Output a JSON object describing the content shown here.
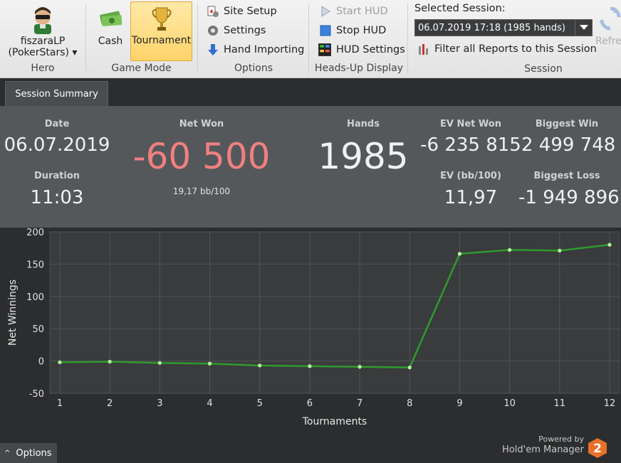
{
  "ribbon": {
    "hero": {
      "name": "fiszaraLP",
      "site": "(PokerStars) ▾",
      "group_label": "Hero"
    },
    "game_mode": {
      "cash_label": "Cash",
      "tournament_label": "Tournament",
      "group_label": "Game Mode"
    },
    "options": {
      "site_setup": "Site Setup",
      "settings": "Settings",
      "hand_importing": "Hand Importing",
      "group_label": "Options"
    },
    "hud": {
      "start_hud": "Start HUD",
      "stop_hud": "Stop HUD",
      "hud_settings": "HUD Settings",
      "group_label": "Heads-Up Display"
    },
    "session": {
      "selected_label": "Selected Session:",
      "selected_value": "06.07.2019 17:18 (1985 hands)",
      "filter_label": "Filter all Reports to this Session",
      "group_label": "Session",
      "refresh_label": "Refre"
    }
  },
  "tabs": {
    "session_summary": "Session Summary"
  },
  "summary": {
    "date_label": "Date",
    "date_value": "06.07.2019",
    "duration_label": "Duration",
    "duration_value": "11:03",
    "net_won_label": "Net Won",
    "net_won_value": "-60 500",
    "bb100_value": "19,17 bb/100",
    "hands_label": "Hands",
    "hands_value": "1985",
    "ev_net_won_label": "EV Net Won",
    "ev_net_won_value": "-6 235 815",
    "ev_bb100_label": "EV (bb/100)",
    "ev_bb100_value": "11,97",
    "biggest_win_label": "Biggest Win",
    "biggest_win_value": "2 499 748",
    "biggest_loss_label": "Biggest Loss",
    "biggest_loss_value": "-1 949 896"
  },
  "chart_data": {
    "type": "line",
    "xlabel": "Tournaments",
    "ylabel": "Net Winnings",
    "x": [
      1,
      2,
      3,
      4,
      5,
      6,
      7,
      8,
      9,
      10,
      11,
      12
    ],
    "series": [
      {
        "values": [
          -2,
          -1,
          -3,
          -4,
          -7,
          -8,
          -9,
          -10,
          166,
          172,
          171,
          180
        ]
      }
    ],
    "ylim": [
      -50,
      200
    ],
    "yticks": [
      -50,
      0,
      50,
      100,
      150,
      200
    ],
    "xticks": [
      1,
      2,
      3,
      4,
      5,
      6,
      7,
      8,
      9,
      10,
      11,
      12
    ],
    "grid": true,
    "line_color": "#2e9a2e",
    "point_color": "#b8ff9c"
  },
  "footer": {
    "options_label": "Options",
    "powered_by": "Powered by",
    "product": "Hold'em Manager",
    "logo_text": "2"
  }
}
